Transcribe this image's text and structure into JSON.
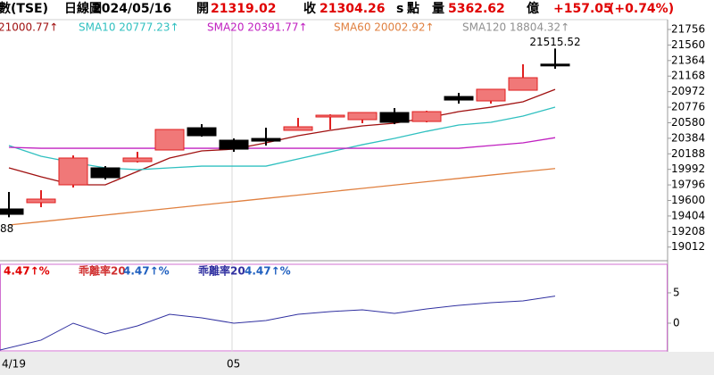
{
  "chart_data": [
    {
      "type": "candlestick",
      "header_items": [
        {
          "text": "數(TSE)",
          "color": "#000000"
        },
        {
          "text": "日線圖",
          "color": "#000000"
        },
        {
          "text": "2024/05/16",
          "color": "#000000"
        },
        {
          "text": "開",
          "color": "#000000"
        },
        {
          "text": "21319.02",
          "color": "#e00000"
        },
        {
          "text": "收",
          "color": "#000000"
        },
        {
          "text": "21304.26",
          "color": "#e00000"
        },
        {
          "text": "s",
          "color": "#000000"
        },
        {
          "text": "點",
          "color": "#000000"
        },
        {
          "text": "量",
          "color": "#000000"
        },
        {
          "text": "5362.62",
          "color": "#e00000"
        },
        {
          "text": "億",
          "color": "#000000"
        },
        {
          "text": "+157.05",
          "color": "#e00000"
        },
        {
          "text": "(+0.74%)",
          "color": "#e00000"
        }
      ],
      "legend_items": [
        {
          "text": "21000.77↑",
          "color": "#a01010"
        },
        {
          "text": "SMA10 20777.23↑",
          "color": "#30c0c0"
        },
        {
          "text": "SMA20 20391.77↑",
          "color": "#c020c0"
        },
        {
          "text": "SMA60 20002.92↑",
          "color": "#e08040"
        },
        {
          "text": "SMA120 18804.32↑",
          "color": "#909090"
        }
      ],
      "categories": [
        "4/19",
        null,
        null,
        null,
        null,
        null,
        null,
        "05",
        null,
        null,
        null,
        null,
        null,
        null,
        null,
        null,
        null,
        null
      ],
      "open": [
        19493,
        19572,
        19797,
        20011,
        20090,
        20236,
        20517,
        20360,
        20382,
        20484,
        20653,
        20619,
        20709,
        20596,
        20911,
        20855,
        20990,
        21319.02
      ],
      "high": [
        19707,
        19729,
        20168,
        20033,
        20213,
        20495,
        20562,
        20382,
        20517,
        20641,
        20686,
        20709,
        20765,
        20731,
        20956,
        21002,
        21317,
        21515.52
      ],
      "low": [
        19388,
        19515,
        19763,
        19864,
        20078,
        20236,
        20405,
        20213,
        20292,
        20484,
        20495,
        20574,
        20562,
        20585,
        20821,
        20821,
        20990,
        21260
      ],
      "close": [
        19425,
        19617,
        20135,
        19887,
        20135,
        20495,
        20416,
        20247,
        20348,
        20529,
        20675,
        20709,
        20585,
        20720,
        20866,
        21002,
        21148,
        21304.26
      ],
      "high_value_labels": [
        null,
        null,
        null,
        null,
        null,
        null,
        null,
        null,
        null,
        null,
        null,
        null,
        null,
        null,
        null,
        null,
        null,
        "21515.52"
      ],
      "low_value_labels": [
        "88",
        null,
        null,
        null,
        null,
        null,
        null,
        null,
        null,
        null,
        null,
        null,
        null,
        null,
        null,
        null,
        null,
        null
      ],
      "up_color": "#f07878",
      "up_edge": "#e02020",
      "down_color": "#000000",
      "ma_lines": [
        {
          "color": "#a01010",
          "values": [
            20011,
            19899,
            19797,
            19797,
            19966,
            20135,
            20225,
            20247,
            20326,
            20416,
            20484,
            20540,
            20574,
            20641,
            20720,
            20776,
            20844,
            21000.77
          ]
        },
        {
          "color": "#30c0c0",
          "values": [
            20292,
            20157,
            20078,
            20011,
            19988,
            20011,
            20033,
            20033,
            20033,
            20123,
            20213,
            20303,
            20382,
            20472,
            20551,
            20585,
            20664,
            20777.23
          ]
        },
        {
          "color": "#c020c0",
          "values": [
            20270,
            20258,
            20258,
            20258,
            20258,
            20258,
            20258,
            20258,
            20258,
            20258,
            20258,
            20258,
            20258,
            20258,
            20258,
            20292,
            20326,
            20391.77
          ]
        },
        {
          "color": "#e08040",
          "values": [
            19290,
            19332,
            19374,
            19416,
            19458,
            19500,
            19542,
            19584,
            19626,
            19668,
            19710,
            19752,
            19794,
            19836,
            19878,
            19920,
            19962,
            20002.92
          ]
        }
      ],
      "ylim": [
        18840,
        21880
      ],
      "yticks": [
        19012,
        19208,
        19404,
        19600,
        19796,
        19992,
        20188,
        20384,
        20580,
        20776,
        20972,
        21168,
        21364,
        21560,
        21756
      ]
    },
    {
      "type": "line",
      "label_items": [
        {
          "text": "4.47↑%",
          "color": "#e00000"
        },
        {
          "text": "乖離率20",
          "color": "#d03030"
        },
        {
          "text": "4.47↑%",
          "color": "#2060c0"
        },
        {
          "text": "乖離率20",
          "color": "#3030a0"
        },
        {
          "text": "4.47↑%",
          "color": "#2060c0"
        }
      ],
      "color": "#3030a0",
      "values": [
        -4.41,
        -2.79,
        0,
        -1.76,
        -0.44,
        1.47,
        0.88,
        0,
        0.44,
        1.47,
        1.91,
        2.21,
        1.62,
        2.35,
        2.94,
        3.38,
        3.68,
        4.47
      ],
      "ylim": [
        -4.56,
        9.7
      ],
      "yticks": [
        5,
        0
      ]
    }
  ]
}
